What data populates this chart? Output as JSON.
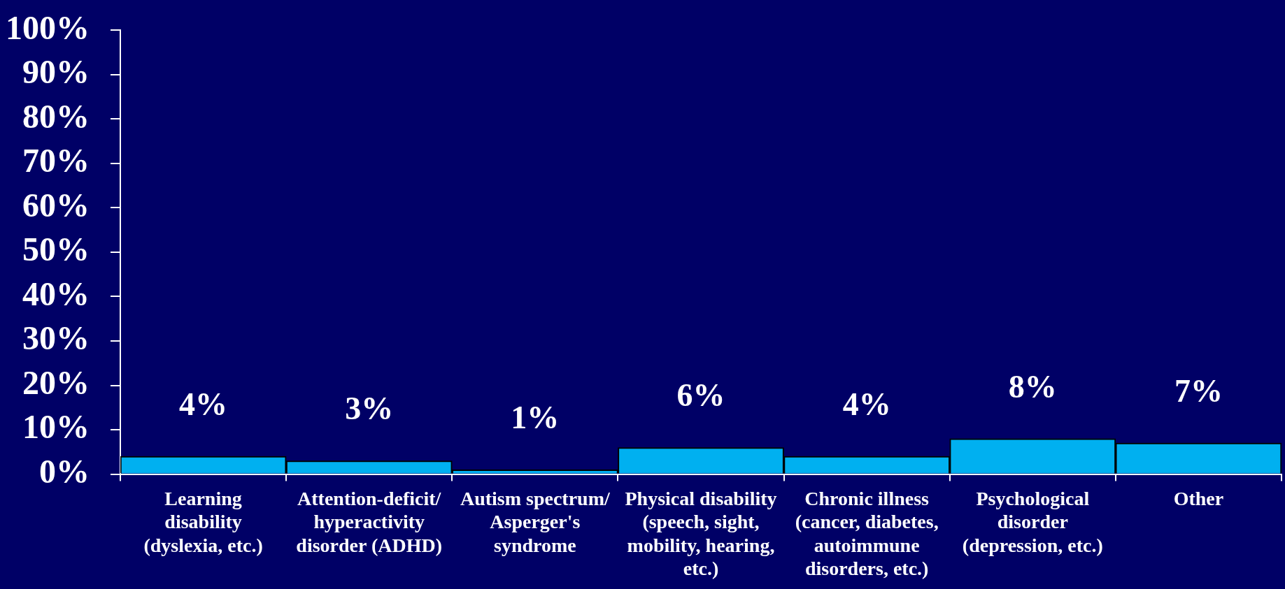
{
  "chart_data": {
    "type": "bar",
    "categories": [
      "Learning disability (dyslexia, etc.)",
      "Attention-deficit/hyperactivity disorder (ADHD)",
      "Autism spectrum/Asperger's syndrome",
      "Physical disability (speech, sight, mobility, hearing, etc.)",
      "Chronic illness (cancer, diabetes, autoimmune disorders, etc.)",
      "Psychological disorder (depression, etc.)",
      "Other"
    ],
    "values": [
      4,
      3,
      1,
      6,
      4,
      8,
      7
    ],
    "value_labels": [
      "4%",
      "3%",
      "1%",
      "6%",
      "4%",
      "8%",
      "7%"
    ],
    "color": "#00b0f0",
    "ylim": [
      0,
      100
    ],
    "yticks": [
      {
        "value": 0,
        "label": "0%"
      },
      {
        "value": 10,
        "label": "10%"
      },
      {
        "value": 20,
        "label": "20%"
      },
      {
        "value": 30,
        "label": "30%"
      },
      {
        "value": 40,
        "label": "40%"
      },
      {
        "value": 50,
        "label": "50%"
      },
      {
        "value": 60,
        "label": "60%"
      },
      {
        "value": 70,
        "label": "70%"
      },
      {
        "value": 80,
        "label": "80%"
      },
      {
        "value": 90,
        "label": "90%"
      },
      {
        "value": 100,
        "label": "100%"
      }
    ]
  }
}
